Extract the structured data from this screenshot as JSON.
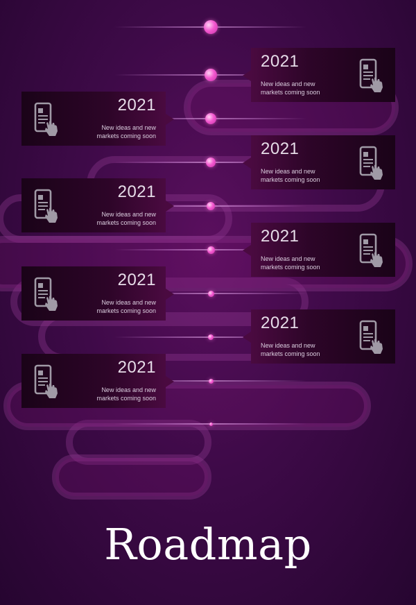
{
  "title": "Roadmap",
  "colors": {
    "background": "#3e0a48",
    "accent_dot": "#f35ad0",
    "card": "#2d0528",
    "text": "#e6dce8"
  },
  "milestones": [
    {
      "side": "right",
      "year": "2021",
      "desc_line1": "New ideas and new",
      "desc_line2": "markets coming soon",
      "icon": "phone-touch-icon"
    },
    {
      "side": "left",
      "year": "2021",
      "desc_line1": "New ideas and new",
      "desc_line2": "markets coming soon",
      "icon": "phone-touch-icon"
    },
    {
      "side": "right",
      "year": "2021",
      "desc_line1": "New ideas and new",
      "desc_line2": "markets coming soon",
      "icon": "phone-touch-icon"
    },
    {
      "side": "left",
      "year": "2021",
      "desc_line1": "New ideas and new",
      "desc_line2": "markets coming soon",
      "icon": "phone-touch-icon"
    },
    {
      "side": "right",
      "year": "2021",
      "desc_line1": "New ideas and new",
      "desc_line2": "markets coming soon",
      "icon": "phone-touch-icon"
    },
    {
      "side": "left",
      "year": "2021",
      "desc_line1": "New ideas and new",
      "desc_line2": "markets coming soon",
      "icon": "phone-touch-icon"
    },
    {
      "side": "right",
      "year": "2021",
      "desc_line1": "New ideas and new",
      "desc_line2": "markets coming soon",
      "icon": "phone-touch-icon"
    },
    {
      "side": "left",
      "year": "2021",
      "desc_line1": "New ideas and new",
      "desc_line2": "markets coming soon",
      "icon": "phone-touch-icon"
    }
  ]
}
